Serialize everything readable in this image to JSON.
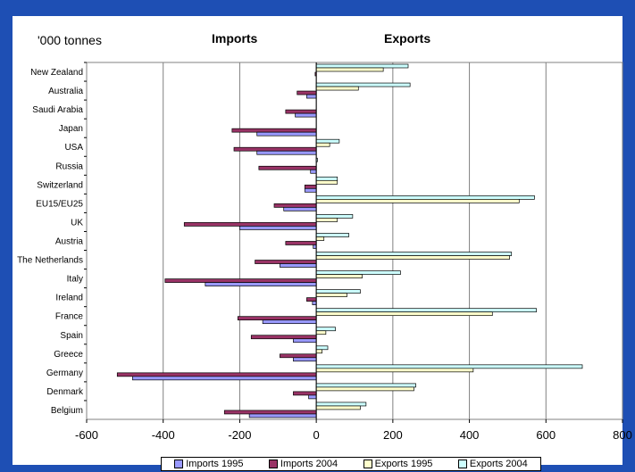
{
  "chart_data": {
    "type": "bar",
    "orientation": "horizontal",
    "unit_label": "'000 tonnes",
    "headings": {
      "imports": "Imports",
      "exports": "Exports"
    },
    "categories": [
      "New Zealand",
      "Australia",
      "Saudi Arabia",
      "Japan",
      "USA",
      "Russia",
      "Switzerland",
      "EU15/EU25",
      "UK",
      "Austria",
      "The Netherlands",
      "Italy",
      "Ireland",
      "France",
      "Spain",
      "Greece",
      "Germany",
      "Denmark",
      "Belgium"
    ],
    "xlim": [
      -600,
      800
    ],
    "xticks": [
      "-600",
      "-400",
      "-200",
      "0",
      "200",
      "400",
      "600",
      "800"
    ],
    "grid": true,
    "legend_position": "bottom",
    "series": [
      {
        "name": "Imports 1995",
        "color": "#9999ff",
        "values": [
          0,
          -25,
          -55,
          -155,
          -155,
          -15,
          -30,
          -85,
          -200,
          -8,
          -95,
          -290,
          -10,
          -140,
          -60,
          -60,
          -480,
          -20,
          -175
        ]
      },
      {
        "name": "Imports 2004",
        "color": "#993366",
        "values": [
          -3,
          -50,
          -80,
          -220,
          -215,
          -150,
          -30,
          -110,
          -345,
          -80,
          -160,
          -395,
          -25,
          -205,
          -170,
          -95,
          -520,
          -60,
          -240
        ]
      },
      {
        "name": "Exports 1995",
        "color": "#ffffcc",
        "values": [
          175,
          110,
          0,
          0,
          35,
          0,
          55,
          530,
          55,
          20,
          505,
          120,
          80,
          460,
          25,
          15,
          410,
          255,
          115
        ]
      },
      {
        "name": "Exports 2004",
        "color": "#ccffff",
        "values": [
          240,
          245,
          0,
          0,
          60,
          3,
          55,
          570,
          95,
          85,
          510,
          220,
          115,
          575,
          50,
          30,
          695,
          260,
          130
        ]
      }
    ]
  }
}
